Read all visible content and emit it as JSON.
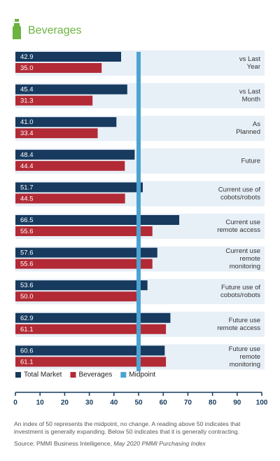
{
  "chart_data": {
    "type": "barh",
    "title": "Beverages",
    "categories": [
      [
        "vs Last",
        "Year"
      ],
      [
        "vs Last",
        "Month"
      ],
      [
        "As",
        "Planned"
      ],
      [
        "Future"
      ],
      [
        "Current use of",
        "cobots/robots"
      ],
      [
        "Current use",
        "remote access"
      ],
      [
        "Current use",
        "remote",
        "monitoring"
      ],
      [
        "Future use of",
        "cobots/robots"
      ],
      [
        "Future use",
        "remote access"
      ],
      [
        "Future use",
        "remote",
        "monitoring"
      ]
    ],
    "series": [
      {
        "name": "Total Market",
        "color": "#173a5e",
        "values": [
          42.9,
          45.4,
          41,
          48.4,
          51.7,
          66.5,
          57.6,
          53.6,
          62.9,
          60.6
        ],
        "value_labels": [
          "42.9",
          "45.4",
          "41.0",
          "48.4",
          "51.7",
          "66.5",
          "57.6",
          "53.6",
          "62.9",
          "60.6"
        ]
      },
      {
        "name": "Beverages",
        "color": "#b22a35",
        "values": [
          35,
          31.3,
          33.4,
          44.4,
          44.5,
          55.6,
          55.6,
          50,
          61.1,
          61.1
        ],
        "value_labels": [
          "35.0",
          "31.3",
          "33.4",
          "44.4",
          "44.5",
          "55.6",
          "55.6",
          "50.0",
          "61.1",
          "61.1"
        ]
      }
    ],
    "midpoint": {
      "name": "Midpoint",
      "value": 50,
      "color": "#4ba4d3"
    },
    "xlim": [
      0,
      100
    ],
    "xticks": [
      0,
      10,
      20,
      30,
      40,
      50,
      60,
      70,
      80,
      90,
      100
    ],
    "note": "An index of 50 represents the midpoint, no change.  A reading above 50 indicates that investment is generally expanding.  Below 50 indicates that it is generally contracting.",
    "source": [
      "Source: PMMI Business Intelligence, ",
      "May 2020 PMMI Purchasing Index"
    ]
  }
}
